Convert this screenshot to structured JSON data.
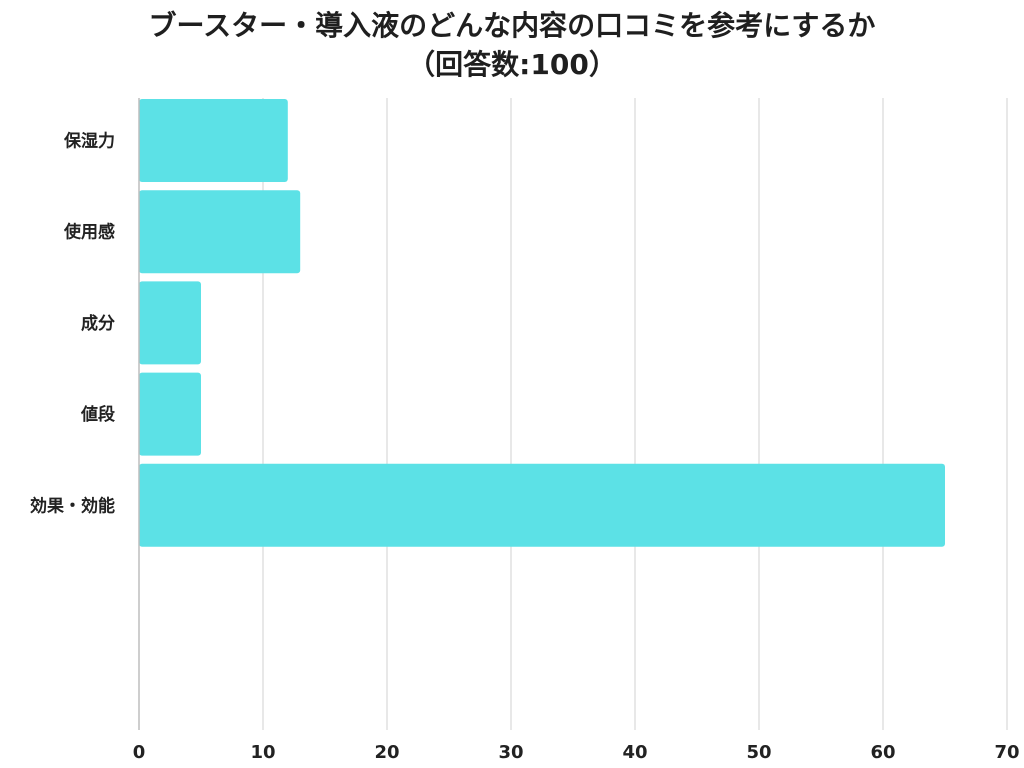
{
  "chart_data": {
    "type": "bar",
    "orientation": "horizontal",
    "title": "ブースター・導入液のどんな内容の口コミを参考にするか",
    "subtitle": "（回答数:100）",
    "categories": [
      "保湿力",
      "使用感",
      "成分",
      "値段",
      "効果・効能"
    ],
    "series": [
      {
        "values": [
          12,
          13,
          5,
          5,
          65
        ]
      }
    ],
    "xlim": [
      0,
      70
    ],
    "xticks": [
      0,
      10,
      20,
      30,
      40,
      50,
      60,
      70
    ],
    "xlabel": "",
    "ylabel": "",
    "grid": "vertical",
    "legend": "none"
  },
  "colors": {
    "bar": "#5ce1e6",
    "grid": "#d9d9d9",
    "axis": "#bdbdbd",
    "text": "#222222"
  }
}
